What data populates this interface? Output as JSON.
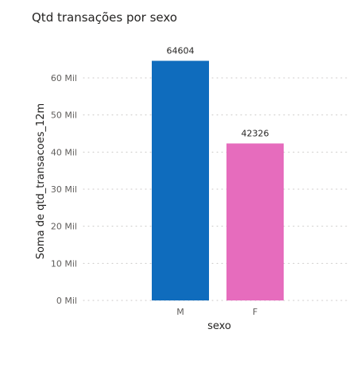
{
  "chart_data": {
    "type": "bar",
    "title": "Qtd transações por sexo",
    "xlabel": "sexo",
    "ylabel": "Soma de qtd_transacoes_12m",
    "categories": [
      "M",
      "F"
    ],
    "values": [
      64604,
      42326
    ],
    "colors": [
      "#0f6cbd",
      "#e66cbd"
    ],
    "ylim": [
      0,
      70000
    ],
    "yticks": [
      0,
      10000,
      20000,
      30000,
      40000,
      50000,
      60000
    ],
    "ytick_labels": [
      "0 Mil",
      "10 Mil",
      "20 Mil",
      "30 Mil",
      "40 Mil",
      "50 Mil",
      "60 Mil"
    ],
    "data_labels": [
      "64604",
      "42326"
    ],
    "grid": true,
    "legend": "none"
  }
}
